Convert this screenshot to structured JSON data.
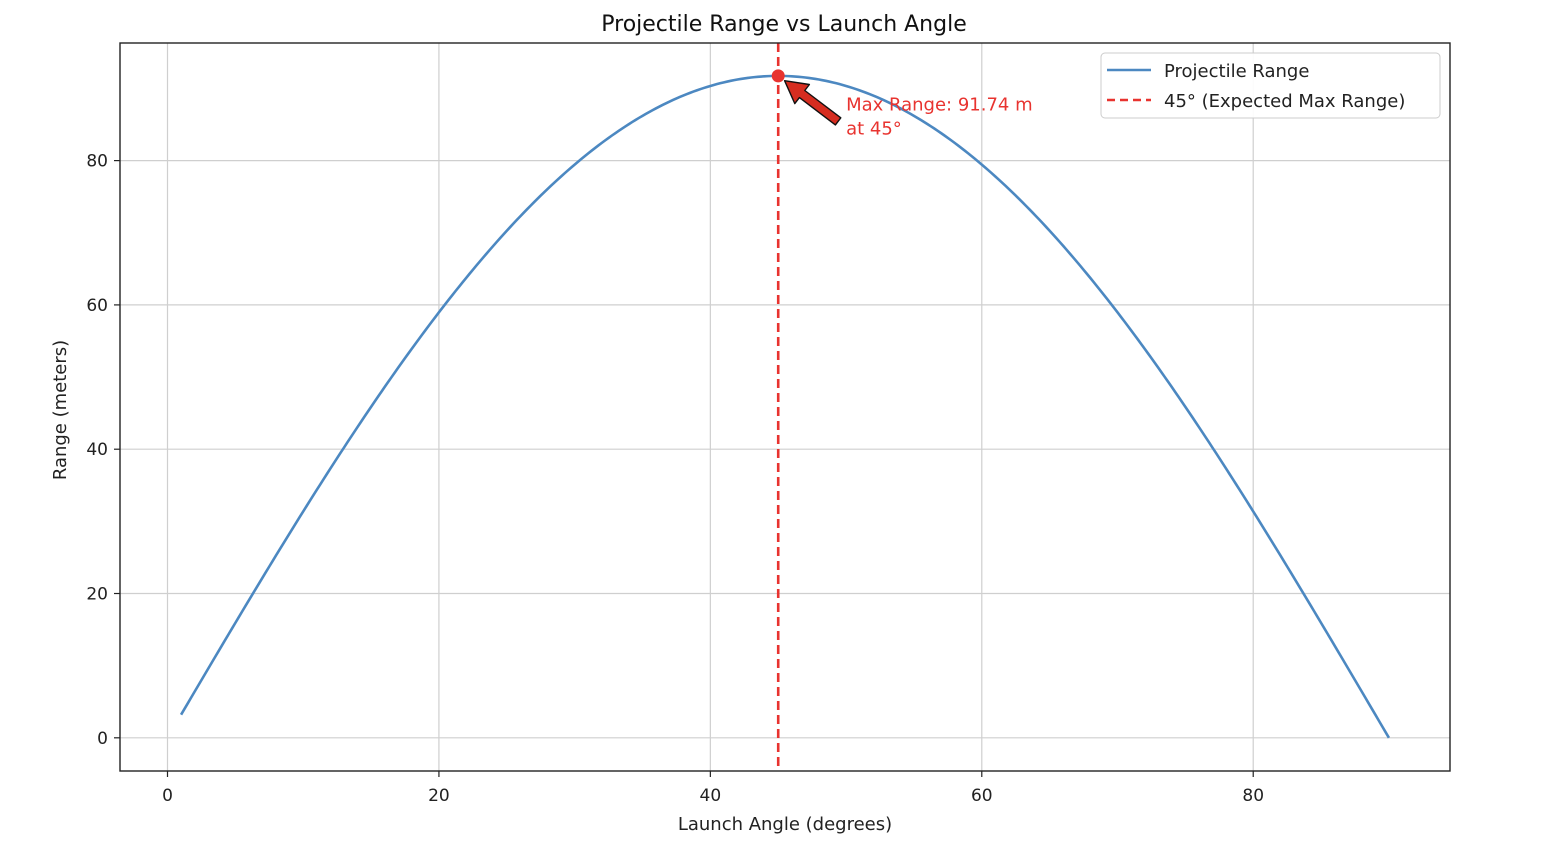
{
  "chart_data": {
    "type": "line",
    "title": "Projectile Range vs Launch Angle",
    "xlabel": "Launch Angle (degrees)",
    "ylabel": "Range (meters)",
    "xlim": [
      -3.5,
      94.5
    ],
    "ylim": [
      -4.6,
      96.3
    ],
    "xticks": [
      0,
      20,
      40,
      60,
      80
    ],
    "yticks": [
      0,
      20,
      40,
      60,
      80
    ],
    "grid": true,
    "legend_position": "top-right",
    "series": [
      {
        "name": "Projectile Range",
        "color": "#4c88c1",
        "style": "solid",
        "function": "91.74 * sin(2 * angle)",
        "x_range": [
          1,
          90
        ],
        "x": [
          1,
          5,
          10,
          15,
          20,
          25,
          30,
          35,
          40,
          45,
          50,
          55,
          60,
          65,
          70,
          75,
          80,
          85,
          90
        ],
        "y": [
          3.2,
          15.93,
          31.38,
          45.87,
          58.97,
          70.28,
          79.45,
          86.21,
          90.35,
          91.74,
          90.35,
          86.21,
          79.45,
          70.28,
          58.97,
          45.87,
          31.38,
          15.93,
          0
        ]
      }
    ],
    "vlines": [
      {
        "name": "45° (Expected Max Range)",
        "x": 45,
        "color": "#e8332f",
        "style": "dashed"
      }
    ],
    "annotations": [
      {
        "text_lines": [
          "Max Range: 91.74 m",
          "at 45°"
        ],
        "point": [
          45,
          91.74
        ],
        "text_pos": [
          50,
          83.5
        ],
        "color": "#e8332f"
      }
    ]
  }
}
